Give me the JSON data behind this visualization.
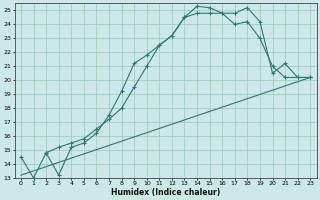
{
  "background_color": "#cce8e8",
  "grid_color": "#99ccbb",
  "line_color": "#2d7a6e",
  "xlim": [
    -0.5,
    23.5
  ],
  "ylim": [
    13,
    25.5
  ],
  "xlabel": "Humidex (Indice chaleur)",
  "xticks": [
    0,
    1,
    2,
    3,
    4,
    5,
    6,
    7,
    8,
    9,
    10,
    11,
    12,
    13,
    14,
    15,
    16,
    17,
    18,
    19,
    20,
    21,
    22,
    23
  ],
  "yticks": [
    13,
    14,
    15,
    16,
    17,
    18,
    19,
    20,
    21,
    22,
    23,
    24,
    25
  ],
  "line1_x": [
    0,
    1,
    2,
    3,
    4,
    5,
    6,
    7,
    8,
    9,
    10,
    11,
    12,
    13,
    14,
    15,
    16,
    17,
    18,
    19,
    20,
    21,
    22,
    23
  ],
  "line1_y": [
    14.5,
    13.0,
    14.8,
    13.2,
    15.2,
    15.5,
    16.2,
    17.5,
    19.2,
    21.2,
    21.8,
    22.5,
    23.2,
    24.5,
    25.3,
    25.2,
    24.8,
    24.8,
    25.2,
    24.2,
    20.5,
    21.2,
    20.2,
    20.2
  ],
  "line2_x": [
    2,
    3,
    4,
    5,
    6,
    7,
    8,
    9,
    10,
    11,
    12,
    13,
    14,
    15,
    16,
    17,
    18,
    19,
    20,
    21,
    22,
    23
  ],
  "line2_y": [
    14.8,
    15.2,
    15.5,
    15.8,
    16.5,
    17.2,
    18.0,
    19.5,
    21.0,
    22.5,
    23.2,
    24.5,
    24.8,
    24.8,
    24.8,
    24.0,
    24.2,
    23.0,
    21.0,
    20.2,
    20.2,
    20.2
  ],
  "line3_x": [
    0,
    23
  ],
  "line3_y": [
    13.2,
    20.2
  ]
}
